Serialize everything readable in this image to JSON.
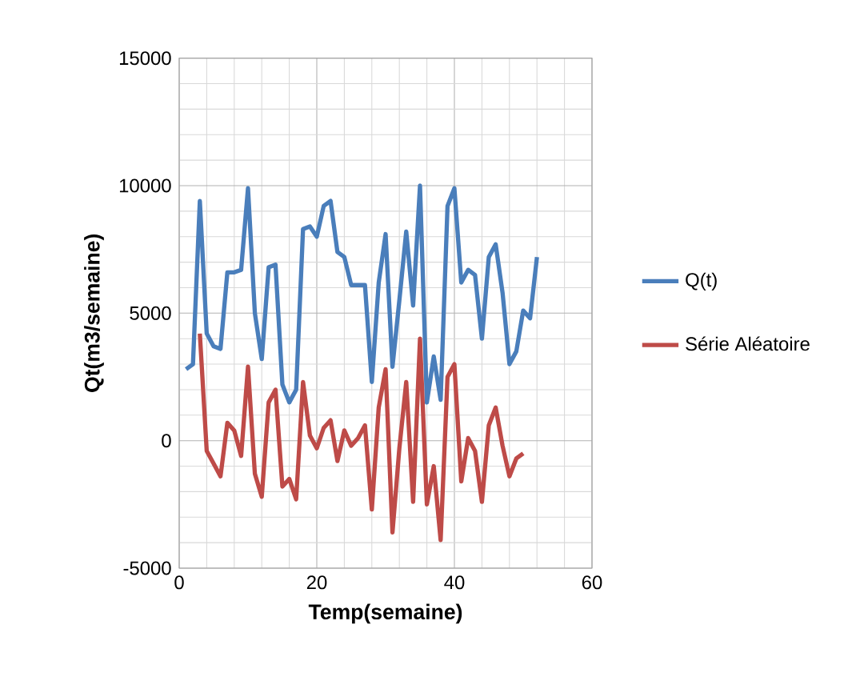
{
  "chart_data": {
    "type": "line",
    "xlabel": "Temp(semaine)",
    "ylabel": "Qt(m3/semaine)",
    "xlim": [
      0,
      60
    ],
    "xticks": [
      0,
      20,
      40,
      60
    ],
    "ylim": [
      -5000,
      15000
    ],
    "yticks": [
      -5000,
      0,
      5000,
      10000,
      15000
    ],
    "grid": true,
    "legend": "right",
    "marker": "none",
    "line_style": "solid",
    "series": [
      {
        "name": "Q(t)",
        "color": "#4a7ebb",
        "x": [
          1,
          2,
          3,
          4,
          5,
          6,
          7,
          8,
          9,
          10,
          11,
          12,
          13,
          14,
          15,
          16,
          17,
          18,
          19,
          20,
          21,
          22,
          23,
          24,
          25,
          26,
          27,
          28,
          29,
          30,
          31,
          32,
          33,
          34,
          35,
          36,
          37,
          38,
          39,
          40,
          41,
          42,
          43,
          44,
          45,
          46,
          47,
          48,
          49,
          50,
          51,
          52
        ],
        "values": [
          2800,
          3000,
          9400,
          4200,
          3700,
          3600,
          6600,
          6600,
          6700,
          9900,
          5000,
          3200,
          6800,
          6900,
          2200,
          1500,
          2000,
          8300,
          8400,
          8000,
          9200,
          9400,
          7400,
          7200,
          6100,
          6100,
          6100,
          2300,
          6200,
          8100,
          2900,
          5500,
          8200,
          5300,
          10000,
          1500,
          3300,
          1600,
          9200,
          9900,
          6200,
          6700,
          6500,
          4000,
          7200,
          7700,
          5800,
          3000,
          3500,
          5100,
          4800,
          7200
        ]
      },
      {
        "name": "Série Aléatoire",
        "color": "#be4b48",
        "x": [
          3,
          4,
          5,
          6,
          7,
          8,
          9,
          10,
          11,
          12,
          13,
          14,
          15,
          16,
          17,
          18,
          19,
          20,
          21,
          22,
          23,
          24,
          25,
          26,
          27,
          28,
          29,
          30,
          31,
          32,
          33,
          34,
          35,
          36,
          37,
          38,
          39,
          40,
          41,
          42,
          43,
          44,
          45,
          46,
          47,
          48,
          49,
          50
        ],
        "values": [
          4200,
          -400,
          -900,
          -1400,
          700,
          400,
          -600,
          2900,
          -1300,
          -2200,
          1500,
          2000,
          -1800,
          -1500,
          -2300,
          2300,
          200,
          -300,
          500,
          800,
          -800,
          400,
          -200,
          100,
          600,
          -2700,
          1300,
          2800,
          -3600,
          -300,
          2300,
          -2400,
          4000,
          -2500,
          -1000,
          -3900,
          2500,
          3000,
          -1600,
          100,
          -400,
          -2400,
          600,
          1300,
          -200,
          -1400,
          -700,
          -500
        ]
      }
    ]
  }
}
